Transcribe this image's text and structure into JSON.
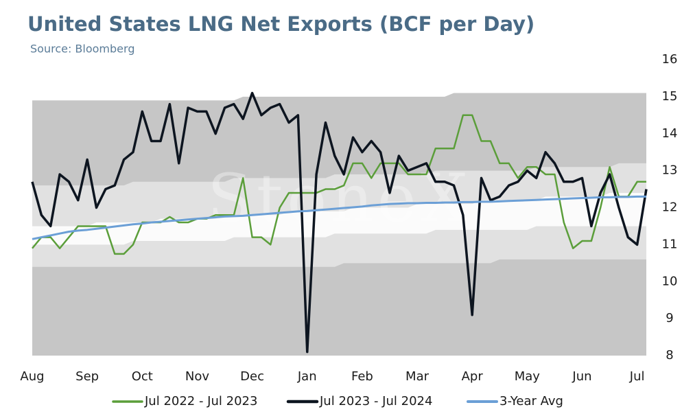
{
  "chart_data": {
    "type": "line",
    "title": "United States LNG Net Exports (BCF per Day)",
    "subtitle": "Source: Bloomberg",
    "watermark": "StoneX",
    "categories": [
      "Aug",
      null,
      null,
      null,
      null,
      null,
      "Sep",
      null,
      null,
      null,
      null,
      null,
      "Oct",
      null,
      null,
      null,
      null,
      null,
      "Nov",
      null,
      null,
      null,
      null,
      null,
      "Dec",
      null,
      null,
      null,
      null,
      null,
      "Jan",
      null,
      null,
      null,
      null,
      null,
      "Feb",
      null,
      null,
      null,
      null,
      null,
      "Mar",
      null,
      null,
      null,
      null,
      null,
      "Apr",
      null,
      null,
      null,
      null,
      null,
      "May",
      null,
      null,
      null,
      null,
      null,
      "Jun",
      null,
      null,
      null,
      null,
      null,
      "Jul",
      null
    ],
    "ylim": [
      8,
      16
    ],
    "yticks": [
      8,
      9,
      10,
      11,
      12,
      13,
      14,
      15,
      16
    ],
    "y_axis_side": "right",
    "grid": false,
    "legend": "bottom",
    "bands": [
      {
        "color": "#c6c6c6",
        "lower": [
          8,
          8,
          8,
          8,
          8,
          8,
          8,
          8,
          8,
          8,
          8,
          8,
          8,
          8,
          8,
          8,
          8,
          8,
          8,
          8,
          8,
          8,
          8,
          8,
          8,
          8,
          8,
          8,
          8,
          8,
          8,
          8,
          8,
          8,
          8,
          8,
          8,
          8,
          8,
          8,
          8,
          8,
          8,
          8,
          8,
          8,
          8,
          8,
          8,
          8,
          8,
          8,
          8,
          8,
          8,
          8,
          8,
          8,
          8,
          8,
          8,
          8,
          8,
          8,
          8,
          8,
          8,
          8
        ],
        "upper": [
          14.9,
          14.9,
          14.9,
          14.9,
          14.9,
          14.9,
          14.9,
          14.9,
          14.9,
          14.9,
          14.9,
          14.9,
          14.9,
          14.9,
          14.9,
          14.9,
          14.9,
          14.9,
          14.9,
          14.9,
          14.9,
          14.9,
          14.9,
          15,
          15,
          15,
          15,
          15,
          15,
          15,
          15,
          15,
          15,
          15,
          15,
          15,
          15,
          15,
          15,
          15,
          15,
          15,
          15,
          15,
          15,
          15,
          15.1,
          15.1,
          15.1,
          15.1,
          15.1,
          15.1,
          15.1,
          15.1,
          15.1,
          15.1,
          15.1,
          15.1,
          15.1,
          15.1,
          15.1,
          15.1,
          15.1,
          15.1,
          15.1,
          15.1,
          15.1,
          15.1
        ]
      },
      {
        "color": "#e1e1e1",
        "lower": [
          10.4,
          10.4,
          10.4,
          10.4,
          10.4,
          10.4,
          10.4,
          10.4,
          10.4,
          10.4,
          10.4,
          10.4,
          10.4,
          10.4,
          10.4,
          10.4,
          10.4,
          10.4,
          10.4,
          10.4,
          10.4,
          10.4,
          10.4,
          10.4,
          10.4,
          10.4,
          10.4,
          10.4,
          10.4,
          10.4,
          10.4,
          10.4,
          10.4,
          10.4,
          10.5,
          10.5,
          10.5,
          10.5,
          10.5,
          10.5,
          10.5,
          10.5,
          10.5,
          10.5,
          10.5,
          10.5,
          10.5,
          10.5,
          10.5,
          10.5,
          10.5,
          10.6,
          10.6,
          10.6,
          10.6,
          10.6,
          10.6,
          10.6,
          10.6,
          10.6,
          10.6,
          10.6,
          10.6,
          10.6,
          10.6,
          10.6,
          10.6,
          10.6
        ],
        "upper": [
          12.6,
          12.6,
          12.6,
          12.6,
          12.6,
          12.6,
          12.6,
          12.6,
          12.6,
          12.6,
          12.6,
          12.7,
          12.7,
          12.7,
          12.7,
          12.7,
          12.7,
          12.7,
          12.7,
          12.7,
          12.7,
          12.7,
          12.8,
          12.8,
          12.8,
          12.8,
          12.8,
          12.8,
          12.8,
          12.8,
          12.8,
          12.8,
          12.8,
          12.9,
          12.9,
          12.9,
          12.9,
          12.9,
          12.9,
          12.9,
          12.9,
          12.9,
          12.9,
          12.9,
          13,
          13,
          13,
          13,
          13,
          13,
          13,
          13,
          13,
          13,
          13,
          13.1,
          13.1,
          13.1,
          13.1,
          13.1,
          13.1,
          13.1,
          13.1,
          13.1,
          13.2,
          13.2,
          13.2,
          13.2
        ]
      },
      {
        "color": "#fbfbfb",
        "lower": [
          11,
          11,
          11,
          11,
          11,
          11,
          11,
          11,
          11,
          11,
          11,
          11.1,
          11.1,
          11.1,
          11.1,
          11.1,
          11.1,
          11.1,
          11.1,
          11.1,
          11.1,
          11.1,
          11.2,
          11.2,
          11.2,
          11.2,
          11.2,
          11.2,
          11.2,
          11.2,
          11.2,
          11.2,
          11.2,
          11.3,
          11.3,
          11.3,
          11.3,
          11.3,
          11.3,
          11.3,
          11.3,
          11.3,
          11.3,
          11.3,
          11.4,
          11.4,
          11.4,
          11.4,
          11.4,
          11.4,
          11.4,
          11.4,
          11.4,
          11.4,
          11.4,
          11.5,
          11.5,
          11.5,
          11.5,
          11.5,
          11.5,
          11.5,
          11.5,
          11.5,
          11.5,
          11.5,
          11.5,
          11.5
        ],
        "upper": [
          11.5,
          11.5,
          11.5,
          11.5,
          11.5,
          11.5,
          11.5,
          11.6,
          11.6,
          11.6,
          11.6,
          11.6,
          11.6,
          11.6,
          11.7,
          11.7,
          11.7,
          11.7,
          11.7,
          11.7,
          11.7,
          11.8,
          11.8,
          11.8,
          11.8,
          11.8,
          11.8,
          11.8,
          11.9,
          11.9,
          11.9,
          11.9,
          11.9,
          11.9,
          11.9,
          12,
          12,
          12,
          12,
          12,
          12,
          12,
          12.1,
          12.1,
          12.1,
          12.1,
          12.1,
          12.1,
          12.1,
          12.2,
          12.2,
          12.2,
          12.2,
          12.2,
          12.2,
          12.2,
          12.3,
          12.3,
          12.3,
          12.3,
          12.3,
          12.3,
          12.3,
          12.4,
          12.4,
          12.4,
          12.4,
          12.4
        ]
      }
    ],
    "series": [
      {
        "name": "Jul 2022 - Jul 2023",
        "color": "#5b9e3a",
        "width": 2.5,
        "values": [
          10.9,
          11.2,
          11.2,
          10.9,
          11.2,
          11.5,
          11.5,
          11.5,
          11.5,
          10.75,
          10.75,
          11,
          11.6,
          11.6,
          11.6,
          11.75,
          11.6,
          11.6,
          11.7,
          11.7,
          11.8,
          11.8,
          11.8,
          12.8,
          11.2,
          11.2,
          11,
          12,
          12.4,
          12.4,
          12.4,
          12.4,
          12.5,
          12.5,
          12.6,
          13.2,
          13.2,
          12.8,
          13.2,
          13.2,
          13.2,
          12.9,
          12.9,
          12.9,
          13.6,
          13.6,
          13.6,
          14.5,
          14.5,
          13.8,
          13.8,
          13.2,
          13.2,
          12.8,
          13.1,
          13.1,
          12.9,
          12.9,
          11.6,
          10.9,
          11.1,
          11.1,
          12,
          13.1,
          12.3,
          12.3,
          12.7,
          12.7
        ]
      },
      {
        "name": "Jul 2023 - Jul 2024",
        "color": "#0d1520",
        "width": 3.5,
        "values": [
          12.7,
          11.8,
          11.5,
          12.9,
          12.7,
          12.2,
          13.3,
          12,
          12.5,
          12.6,
          13.3,
          13.5,
          14.6,
          13.8,
          13.8,
          14.8,
          13.2,
          14.7,
          14.6,
          14.6,
          14,
          14.7,
          14.8,
          14.4,
          15.1,
          14.5,
          14.7,
          14.8,
          14.3,
          14.5,
          8.1,
          12.9,
          14.3,
          13.4,
          12.9,
          13.9,
          13.5,
          13.8,
          13.5,
          12.4,
          13.4,
          13,
          13.1,
          13.2,
          12.7,
          12.7,
          12.6,
          11.8,
          9.1,
          12.8,
          12.2,
          12.3,
          12.6,
          12.7,
          13,
          12.8,
          13.5,
          13.2,
          12.7,
          12.7,
          12.8,
          11.5,
          12.4,
          12.9,
          12,
          11.2,
          11,
          12.5
        ]
      },
      {
        "name": "3-Year Avg",
        "color": "#6b9fd6",
        "width": 3,
        "values": [
          11.15,
          11.2,
          11.25,
          11.3,
          11.35,
          11.38,
          11.4,
          11.43,
          11.46,
          11.49,
          11.52,
          11.55,
          11.57,
          11.6,
          11.62,
          11.64,
          11.66,
          11.68,
          11.7,
          11.72,
          11.74,
          11.76,
          11.77,
          11.78,
          11.8,
          11.82,
          11.84,
          11.86,
          11.88,
          11.9,
          11.91,
          11.93,
          11.95,
          11.97,
          11.99,
          12.01,
          12.03,
          12.06,
          12.08,
          12.1,
          12.11,
          12.12,
          12.12,
          12.13,
          12.13,
          12.14,
          12.14,
          12.15,
          12.15,
          12.16,
          12.16,
          12.17,
          12.18,
          12.19,
          12.2,
          12.21,
          12.22,
          12.23,
          12.24,
          12.25,
          12.26,
          12.27,
          12.28,
          12.28,
          12.29,
          12.29,
          12.3,
          12.3
        ]
      }
    ]
  }
}
